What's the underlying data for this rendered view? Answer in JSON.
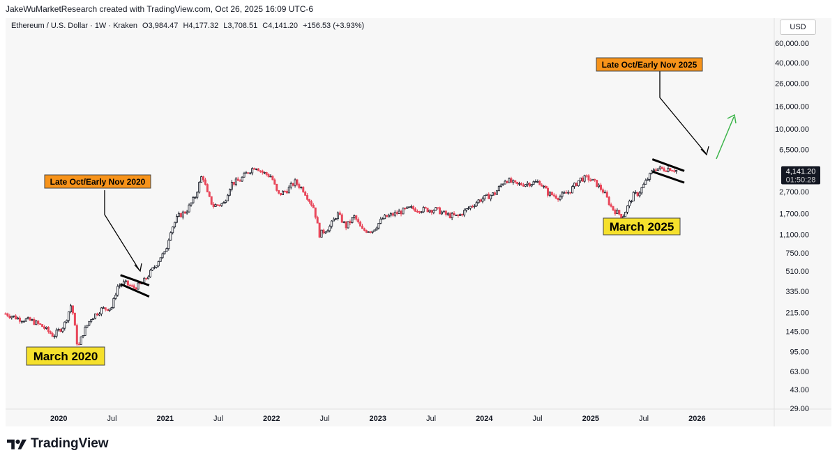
{
  "header": {
    "credit": "JakeWuMarketResearch created with TradingView.com, Oct 26, 2025 16:09 UTC-6"
  },
  "symbol_bar": {
    "name": "Ethereum / U.S. Dollar · 1W · Kraken",
    "open": "O3,984.47",
    "high": "H4,177.32",
    "low": "L3,708.51",
    "close": "C4,141.20",
    "change": "+156.53 (+3.93%)"
  },
  "currency_button": "USD",
  "footer": {
    "brand": "TradingView"
  },
  "colors": {
    "up": "#131722",
    "down": "#e8475a",
    "arrow_green": "#3cb44a",
    "label_orange": "#f7931a",
    "label_yellow": "#f5e02c",
    "background": "#f7f7f7"
  },
  "chart_data": {
    "type": "candlestick",
    "title": "Ethereum / U.S. Dollar · 1W · Kraken",
    "y_scale": "log",
    "y_ticks": [
      "29.00",
      "43.00",
      "63.00",
      "95.00",
      "145.00",
      "215.00",
      "335.00",
      "510.00",
      "750.00",
      "1,100.00",
      "1,700.00",
      "2,700.00",
      "4,141.20",
      "6,500.00",
      "10,000.00",
      "16,000.00",
      "26,000.00",
      "40,000.00",
      "60,000.00"
    ],
    "y_tick_values": [
      29,
      43,
      63,
      95,
      145,
      215,
      335,
      510,
      750,
      1100,
      1700,
      2700,
      4141.2,
      6500,
      10000,
      16000,
      26000,
      40000,
      60000
    ],
    "x_ticks": [
      "2020",
      "Jul",
      "2021",
      "Jul",
      "2022",
      "Jul",
      "2023",
      "Jul",
      "2024",
      "Jul",
      "2025",
      "Jul",
      "2026"
    ],
    "x_tick_dates": [
      2020.0,
      2020.5,
      2021.0,
      2021.5,
      2022.0,
      2022.5,
      2023.0,
      2023.5,
      2024.0,
      2024.5,
      2025.0,
      2025.5,
      2026.0
    ],
    "x_range": [
      2019.5,
      2026.66
    ],
    "last_price_label": "4,141.20",
    "countdown_label": "01:50:28",
    "price_path": [
      [
        2019.5,
        210
      ],
      [
        2019.62,
        190
      ],
      [
        2019.75,
        180
      ],
      [
        2019.85,
        160
      ],
      [
        2019.95,
        132
      ],
      [
        2020.05,
        165
      ],
      [
        2020.12,
        260
      ],
      [
        2020.18,
        100
      ],
      [
        2020.22,
        135
      ],
      [
        2020.3,
        190
      ],
      [
        2020.4,
        230
      ],
      [
        2020.5,
        240
      ],
      [
        2020.55,
        370
      ],
      [
        2020.62,
        400
      ],
      [
        2020.7,
        360
      ],
      [
        2020.78,
        390
      ],
      [
        2020.85,
        480
      ],
      [
        2020.9,
        560
      ],
      [
        2020.96,
        700
      ],
      [
        2021.0,
        740
      ],
      [
        2021.05,
        1200
      ],
      [
        2021.12,
        1600
      ],
      [
        2021.2,
        1800
      ],
      [
        2021.28,
        2400
      ],
      [
        2021.35,
        3900
      ],
      [
        2021.4,
        2500
      ],
      [
        2021.45,
        2000
      ],
      [
        2021.55,
        2100
      ],
      [
        2021.62,
        3200
      ],
      [
        2021.7,
        3400
      ],
      [
        2021.77,
        4000
      ],
      [
        2021.85,
        4600
      ],
      [
        2021.92,
        4000
      ],
      [
        2022.0,
        3700
      ],
      [
        2022.06,
        2500
      ],
      [
        2022.15,
        2800
      ],
      [
        2022.22,
        3300
      ],
      [
        2022.3,
        2800
      ],
      [
        2022.4,
        1900
      ],
      [
        2022.45,
        1100
      ],
      [
        2022.55,
        1300
      ],
      [
        2022.62,
        1700
      ],
      [
        2022.7,
        1300
      ],
      [
        2022.78,
        1600
      ],
      [
        2022.85,
        1200
      ],
      [
        2022.95,
        1200
      ],
      [
        2023.05,
        1550
      ],
      [
        2023.2,
        1750
      ],
      [
        2023.3,
        1900
      ],
      [
        2023.4,
        1850
      ],
      [
        2023.55,
        1850
      ],
      [
        2023.65,
        1650
      ],
      [
        2023.75,
        1600
      ],
      [
        2023.85,
        1900
      ],
      [
        2023.95,
        2250
      ],
      [
        2024.1,
        2600
      ],
      [
        2024.2,
        3500
      ],
      [
        2024.3,
        3100
      ],
      [
        2024.4,
        3200
      ],
      [
        2024.52,
        3300
      ],
      [
        2024.6,
        2600
      ],
      [
        2024.7,
        2400
      ],
      [
        2024.8,
        2700
      ],
      [
        2024.9,
        3500
      ],
      [
        2024.97,
        3600
      ],
      [
        2025.05,
        3200
      ],
      [
        2025.12,
        2700
      ],
      [
        2025.2,
        1900
      ],
      [
        2025.3,
        1600
      ],
      [
        2025.4,
        2500
      ],
      [
        2025.45,
        2600
      ],
      [
        2025.55,
        3700
      ],
      [
        2025.6,
        4400
      ],
      [
        2025.68,
        4300
      ],
      [
        2025.75,
        4400
      ],
      [
        2025.82,
        4141
      ]
    ],
    "annotations": [
      {
        "text": "Late Oct/Early Nov 2020",
        "style": "orange-label",
        "date": 2020.45,
        "price": 2400
      },
      {
        "text": "March 2020",
        "style": "yellow-label",
        "date": 2020.0,
        "price": 85
      },
      {
        "text": "Late Oct/Early Nov 2025",
        "style": "orange-label",
        "date": 2025.4,
        "price": 36000
      },
      {
        "text": "March 2025",
        "style": "yellow-label",
        "date": 2025.3,
        "price": 1150
      }
    ]
  }
}
